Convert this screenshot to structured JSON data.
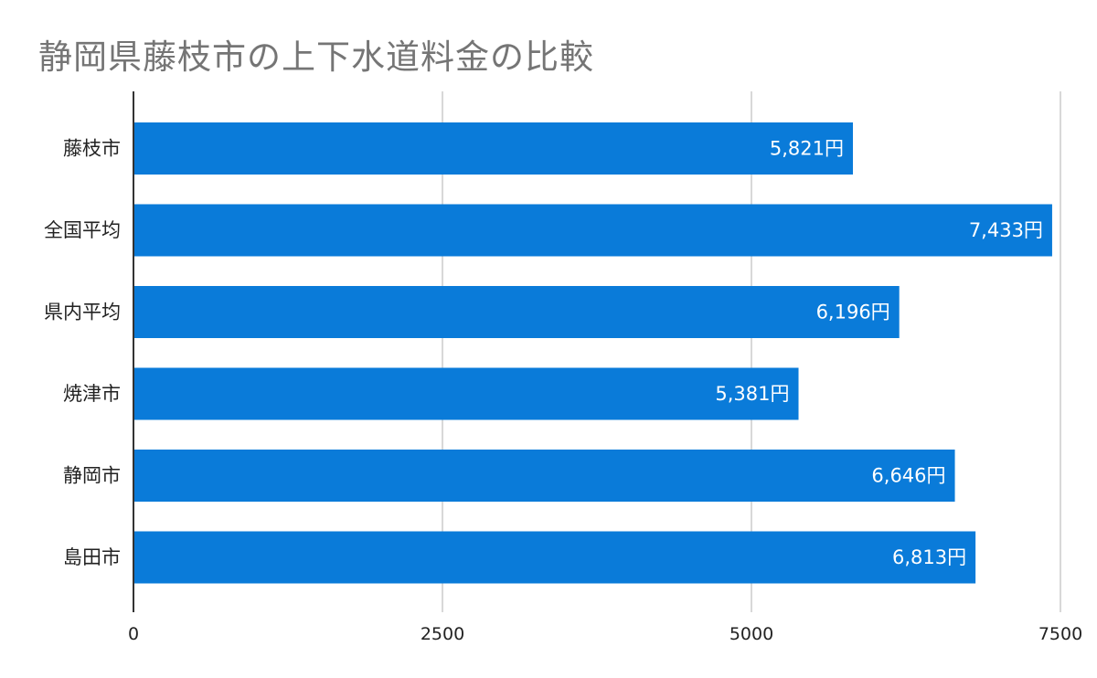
{
  "chart_data": {
    "type": "bar",
    "orientation": "horizontal",
    "title": "静岡県藤枝市の上下水道料金の比較",
    "categories": [
      "藤枝市",
      "全国平均",
      "県内平均",
      "焼津市",
      "静岡市",
      "島田市"
    ],
    "values": [
      5821,
      7433,
      6196,
      5381,
      6646,
      6813
    ],
    "value_labels": [
      "5,821円",
      "7,433円",
      "6,196円",
      "5,381円",
      "6,646円",
      "6,813円"
    ],
    "xlim": [
      0,
      7500
    ],
    "x_ticks": [
      "0",
      "2500",
      "5000",
      "7500"
    ],
    "x_tick_values": [
      0,
      2500,
      5000,
      7500
    ],
    "xlabel": "",
    "ylabel": "",
    "grid": "vertical",
    "legend": "none",
    "colors": {
      "bar": "#0a7bd9",
      "grid": "#cccccc",
      "axis": "#333333",
      "title": "#757575",
      "text": "#222222",
      "value_text": "#ffffff"
    }
  }
}
